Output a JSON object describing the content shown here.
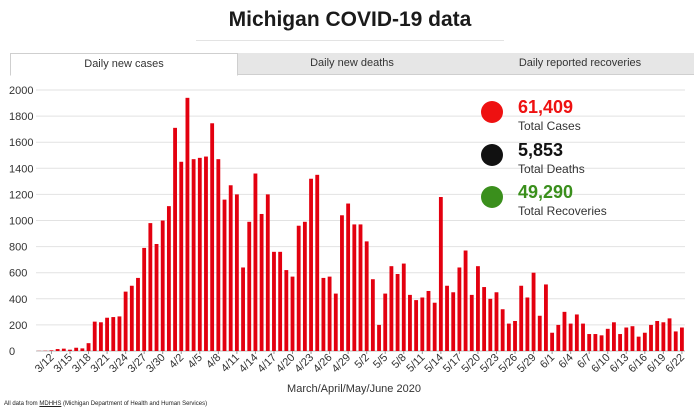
{
  "page_title": "Michigan COVID-19 data",
  "tabs": [
    {
      "label": "Daily new cases",
      "active": true
    },
    {
      "label": "Daily new deaths",
      "active": false
    },
    {
      "label": "Daily reported recoveries",
      "active": false
    }
  ],
  "stats": [
    {
      "value": "61,409",
      "label": "Total Cases",
      "color": "#ee1111"
    },
    {
      "value": "5,853",
      "label": "Total Deaths",
      "color": "#111111"
    },
    {
      "value": "49,290",
      "label": "Total Recoveries",
      "color": "#3a8f1c"
    }
  ],
  "footer": {
    "prefix": "All data from ",
    "link_text": "MDHHS",
    "suffix": " (Michigan Department of Health and Human Services)"
  },
  "chart_data": {
    "type": "bar",
    "xlabel": "March/April/May/June 2020",
    "ylabel": "",
    "ylim": [
      0,
      2000
    ],
    "yticks": [
      0,
      200,
      400,
      600,
      800,
      1000,
      1200,
      1400,
      1600,
      1800,
      2000
    ],
    "grid": true,
    "bar_color": "#e3000f",
    "tick_labels": [
      "3/12",
      "3/15",
      "3/18",
      "3/21",
      "3/24",
      "3/27",
      "3/30",
      "4/2",
      "4/5",
      "4/8",
      "4/11",
      "4/14",
      "4/17",
      "4/20",
      "4/23",
      "4/26",
      "4/29",
      "5/2",
      "5/5",
      "5/8",
      "5/11",
      "5/14",
      "5/17",
      "5/20",
      "5/23",
      "5/26",
      "5/29",
      "6/1",
      "6/4",
      "6/7",
      "6/10",
      "6/13",
      "6/16",
      "6/19",
      "6/22"
    ],
    "start_date": "3/10",
    "values": [
      1,
      2,
      5,
      15,
      18,
      10,
      25,
      20,
      60,
      225,
      220,
      255,
      260,
      265,
      455,
      500,
      560,
      790,
      980,
      820,
      1000,
      1110,
      1710,
      1450,
      1940,
      1470,
      1480,
      1490,
      1745,
      1470,
      1160,
      1270,
      1200,
      640,
      990,
      1360,
      1050,
      1200,
      760,
      760,
      620,
      570,
      960,
      990,
      1320,
      1350,
      560,
      570,
      440,
      1040,
      1130,
      970,
      970,
      840,
      550,
      200,
      440,
      650,
      590,
      670,
      430,
      390,
      410,
      460,
      370,
      1180,
      500,
      450,
      640,
      770,
      430,
      650,
      490,
      400,
      450,
      320,
      210,
      230,
      500,
      410,
      600,
      270,
      510,
      140,
      200,
      300,
      210,
      280,
      210,
      130,
      130,
      120,
      170,
      220,
      130,
      180,
      190,
      110,
      140,
      200,
      230,
      220,
      250,
      150,
      180
    ]
  }
}
